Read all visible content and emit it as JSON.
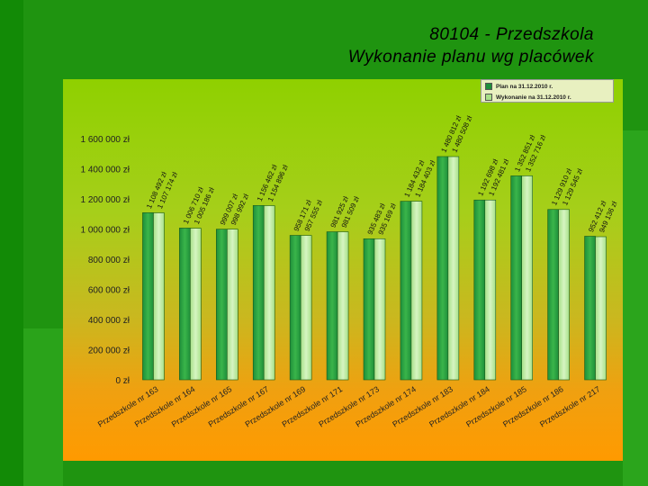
{
  "slide": {
    "title_line1": "80104 - Przedszkola",
    "title_line2": "Wykonanie planu wg placówek"
  },
  "colors": {
    "plan": "#1e8f3a",
    "plan_light": "#3ab54a",
    "wykonanie": "#a8e088",
    "wykonanie_light": "#d6f5c2"
  },
  "chart_data": {
    "type": "bar",
    "categories": [
      "Przedszkole nr 163",
      "Przedszkole nr 164",
      "Przedszkole nr 165",
      "Przedszkole nr 167",
      "Przedszkole nr 169",
      "Przedszkole nr 171",
      "Przedszkole nr 173",
      "Przedszkole nr 174",
      "Przedszkole nr 183",
      "Przedszkole nr 184",
      "Przedszkole nr 185",
      "Przedszkole nr 186",
      "Przedszkole nr 217"
    ],
    "series": [
      {
        "name": "Plan na 31.12.2010 r.",
        "values": [
          1108492,
          1006710,
          999007,
          1156462,
          958171,
          981925,
          935483,
          1184432,
          1480812,
          1192698,
          1352851,
          1129910,
          952412
        ],
        "labels": [
          "1 108 492 zł",
          "1 006 710 zł",
          "999 007 zł",
          "1 156 462 zł",
          "958 171 zł",
          "981 925 zł",
          "935 483 zł",
          "1 184 432 zł",
          "1 480 812 zł",
          "1 192 698 zł",
          "1 352 851 zł",
          "1 129 910 zł",
          "952 412 zł"
        ]
      },
      {
        "name": "Wykonanie na 31.12.2010 r.",
        "values": [
          1107174,
          1005186,
          998992,
          1154896,
          957555,
          981509,
          935169,
          1184403,
          1480508,
          1192481,
          1352716,
          1129545,
          949136
        ],
        "labels": [
          "1 107 174 zł",
          "1 005 186 zł",
          "998 992 zł",
          "1 154 896 zł",
          "957 555 zł",
          "981 509 zł",
          "935 169 zł",
          "1 184 403 zł",
          "1 480 508 zł",
          "1 192 481 zł",
          "1 352 716 zł",
          "1 129 545 zł",
          "949 136 zł"
        ]
      }
    ],
    "ylim": [
      0,
      1600000
    ],
    "yticks": [
      0,
      200000,
      400000,
      600000,
      800000,
      1000000,
      1200000,
      1400000,
      1600000
    ],
    "ytick_labels": [
      "0 zł",
      "200 000 zł",
      "400 000 zł",
      "600 000 zł",
      "800 000 zł",
      "1 000 000 zł",
      "1 200 000 zł",
      "1 400 000 zł",
      "1 600 000 zł"
    ],
    "grid": false,
    "legend_position": "top-right"
  }
}
